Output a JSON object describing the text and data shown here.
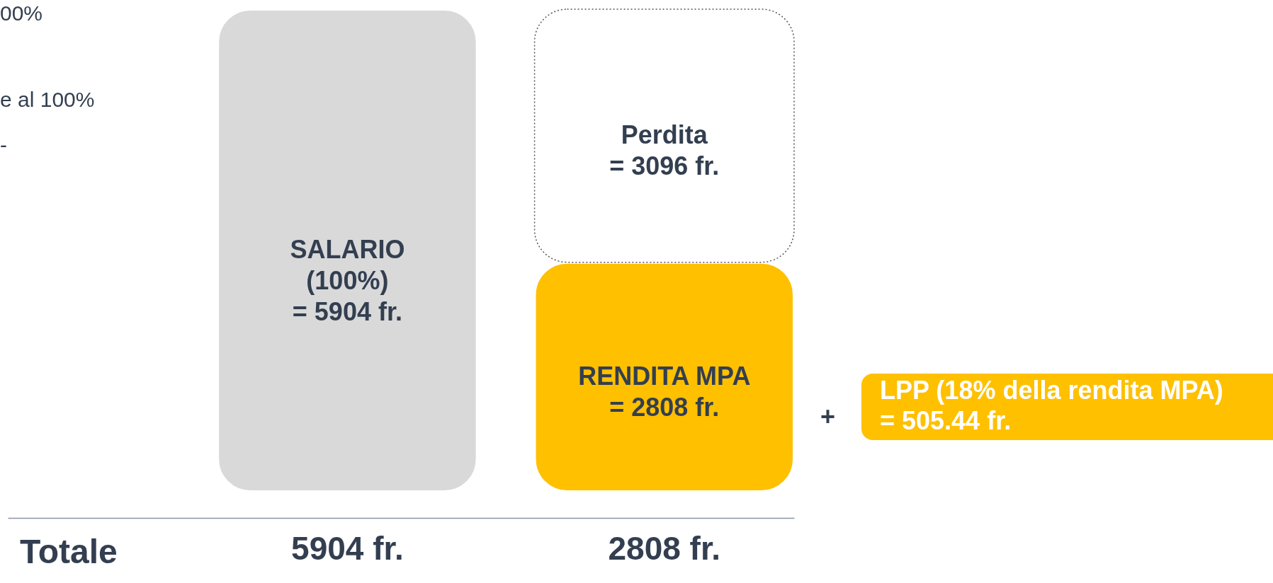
{
  "chart_data": {
    "type": "bar",
    "stacked": true,
    "categories": [
      "5904 fr.",
      "2808 fr."
    ],
    "series": [
      {
        "name": "SALARIO",
        "color": "#d9d9d9",
        "values": [
          5904,
          null
        ],
        "value_labels": [
          "(100%)\n= 5904 fr.",
          null
        ]
      },
      {
        "name": "RENDITA MPA",
        "color": "#ffc000",
        "values": [
          null,
          2808
        ],
        "value_labels": [
          null,
          "= 2808 fr."
        ]
      },
      {
        "name": "Perdita",
        "color": "#ffffff",
        "line_style": "dotted",
        "values": [
          null,
          3096
        ],
        "value_labels": [
          null,
          "= 3096 fr."
        ]
      }
    ],
    "annotations": [
      "00%",
      "e al 100%",
      "-",
      "Totale",
      "+",
      "LPP (18% della rendita MPA)\n= 505.44 fr."
    ]
  }
}
